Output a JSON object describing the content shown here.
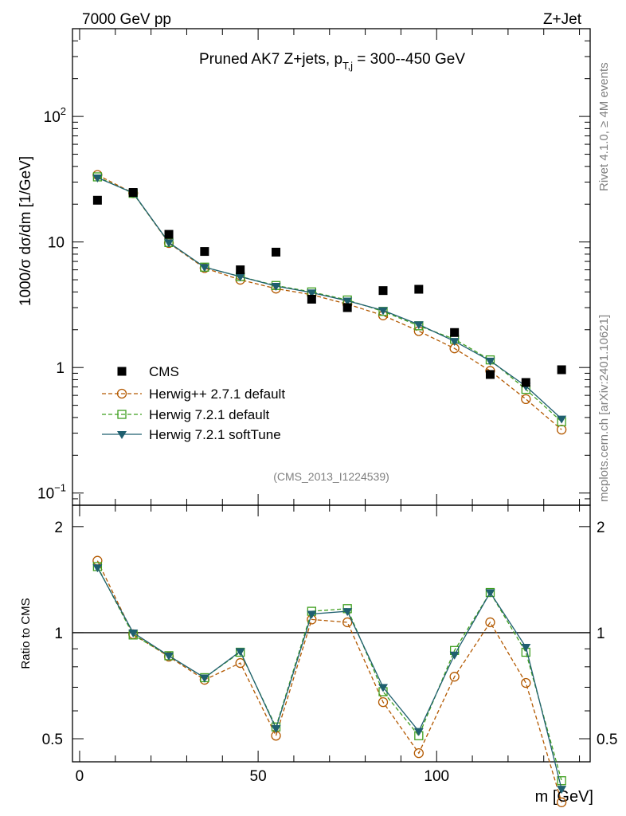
{
  "header": {
    "left": "7000 GeV pp",
    "right": "Z+Jet"
  },
  "side_labels": {
    "rivet": "Rivet 4.1.0, ≥ 4M events",
    "mcplots": "mcplots.cern.ch [arXiv:2401.10621]"
  },
  "chart_data": [
    {
      "type": "scatter",
      "panel": "main",
      "title": "Pruned AK7 Z+jets, p_{T,j} = 300--450 GeV",
      "ylabel": "1000/σ  dσ/dm [1/GeV]",
      "yscale": "log",
      "ylim": [
        0.08,
        500
      ],
      "xlim": [
        -2,
        143
      ],
      "watermark": "(CMS_2013_I1224539)",
      "legend_position": "lower-left",
      "x": [
        5,
        15,
        25,
        35,
        45,
        55,
        65,
        75,
        85,
        95,
        105,
        115,
        125,
        135
      ],
      "series": [
        {
          "name": "CMS",
          "marker": "filled-square",
          "color": "#000000",
          "values": [
            21.5,
            24.8,
            11.5,
            8.4,
            6.0,
            8.3,
            3.5,
            3.0,
            4.1,
            4.2,
            1.9,
            0.88,
            0.76,
            0.96
          ]
        },
        {
          "name": "Herwig++ 2.7.1 default",
          "marker": "open-circle",
          "color": "#b35900",
          "dash": "dashed",
          "values": [
            34.2,
            24.5,
            9.8,
            6.2,
            5.0,
            4.25,
            3.8,
            3.2,
            2.6,
            1.95,
            1.42,
            0.94,
            0.56,
            0.32
          ]
        },
        {
          "name": "Herwig 7.2.1 default",
          "marker": "open-square",
          "color": "#3f9f1f",
          "dash": "dashed",
          "values": [
            33.0,
            24.4,
            9.9,
            6.3,
            5.3,
            4.5,
            4.0,
            3.45,
            2.8,
            2.15,
            1.68,
            1.15,
            0.67,
            0.37
          ]
        },
        {
          "name": "Herwig 7.2.1 softTune",
          "marker": "filled-triangle-down",
          "color": "#1f5f6f",
          "dash": "solid",
          "values": [
            32.5,
            24.6,
            9.9,
            6.3,
            5.3,
            4.45,
            3.95,
            3.4,
            2.85,
            2.2,
            1.62,
            1.13,
            0.71,
            0.39
          ]
        }
      ],
      "yticks": [
        {
          "value": 100,
          "label": "10",
          "exp": "2"
        },
        {
          "value": 10,
          "label": "10",
          "exp": ""
        },
        {
          "value": 1,
          "label": "1",
          "exp": ""
        },
        {
          "value": 0.1,
          "label": "10",
          "exp": "−1"
        }
      ]
    },
    {
      "type": "line",
      "panel": "ratio",
      "ylabel": "Ratio to CMS",
      "xlabel": "m [GeV]",
      "yscale": "log",
      "ylim": [
        0.43,
        2.3
      ],
      "xlim": [
        -2,
        143
      ],
      "reference_line": 1,
      "x": [
        5,
        15,
        25,
        35,
        45,
        55,
        65,
        75,
        85,
        95,
        105,
        115,
        125,
        135
      ],
      "series": [
        {
          "name": "Herwig++ 2.7.1 default",
          "marker": "open-circle",
          "color": "#b35900",
          "dash": "dashed",
          "values": [
            1.6,
            0.99,
            0.855,
            0.735,
            0.82,
            0.51,
            1.09,
            1.07,
            0.635,
            0.455,
            0.75,
            1.07,
            0.72,
            0.33
          ]
        },
        {
          "name": "Herwig 7.2.1 default",
          "marker": "open-square",
          "color": "#3f9f1f",
          "dash": "dashed",
          "values": [
            1.54,
            0.985,
            0.86,
            0.745,
            0.88,
            0.54,
            1.15,
            1.17,
            0.68,
            0.51,
            0.89,
            1.3,
            0.88,
            0.38
          ]
        },
        {
          "name": "Herwig 7.2.1 softTune",
          "marker": "filled-triangle-down",
          "color": "#1f5f6f",
          "dash": "solid",
          "values": [
            1.53,
            1.0,
            0.86,
            0.745,
            0.885,
            0.535,
            1.13,
            1.15,
            0.7,
            0.525,
            0.865,
            1.3,
            0.91,
            0.36
          ]
        }
      ],
      "yticks": [
        {
          "value": 2,
          "label": "2"
        },
        {
          "value": 1,
          "label": "1"
        },
        {
          "value": 0.5,
          "label": "0.5"
        }
      ],
      "xticks": [
        {
          "value": 0,
          "label": "0"
        },
        {
          "value": 50,
          "label": "50"
        },
        {
          "value": 100,
          "label": "100"
        }
      ]
    }
  ]
}
